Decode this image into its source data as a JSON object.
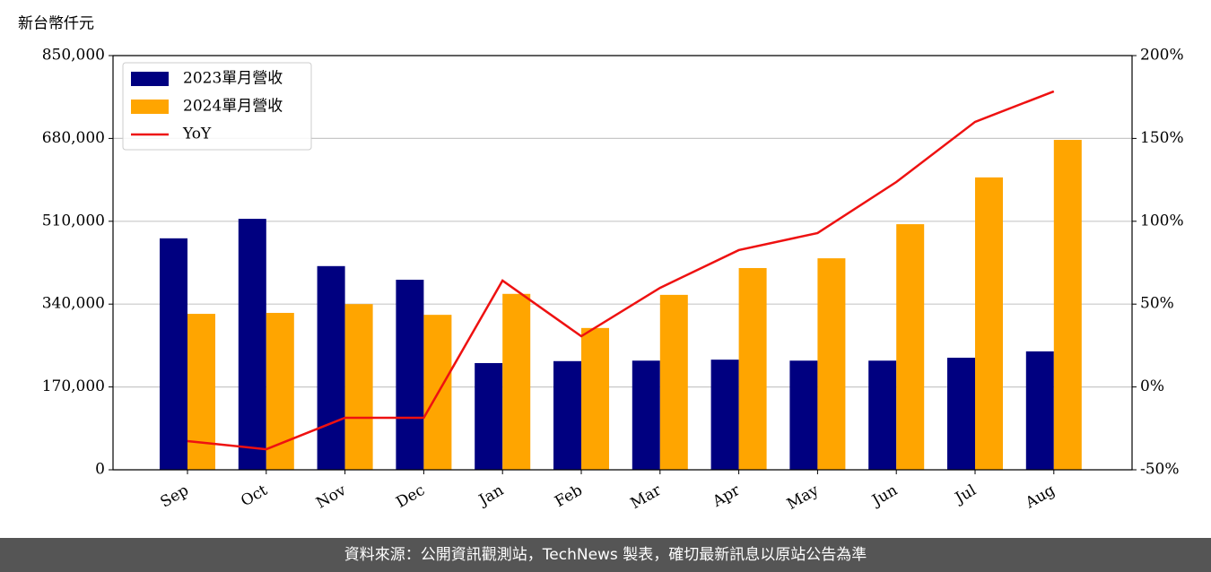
{
  "chart_data": {
    "type": "bar",
    "y_axis_label": "新台幣仟元",
    "categories": [
      "Sep",
      "Oct",
      "Nov",
      "Dec",
      "Jan",
      "Feb",
      "Mar",
      "Apr",
      "May",
      "Jun",
      "Jul",
      "Aug"
    ],
    "series": [
      {
        "name": "2023單月營收",
        "color": "#000080",
        "values": [
          475000,
          515000,
          418000,
          390000,
          219000,
          223000,
          224000,
          226000,
          224000,
          224000,
          230000,
          243000
        ]
      },
      {
        "name": "2024單月營收",
        "color": "#ffa500",
        "values": [
          320000,
          322000,
          340000,
          318000,
          361000,
          291000,
          359000,
          414000,
          434000,
          504000,
          600000,
          677000
        ]
      },
      {
        "name": "YoY",
        "color": "#ee1111",
        "type": "line",
        "axis": "y2",
        "values": [
          -32.7,
          -37.6,
          -18.6,
          -18.6,
          64.2,
          30.6,
          59.8,
          82.6,
          92.9,
          123.7,
          160,
          178.4
        ]
      }
    ],
    "ylim": [
      0,
      850000
    ],
    "yticks": [
      0,
      {
        "value": 170000,
        "label": "170,000"
      },
      {
        "value": 340000,
        "label": "340,000"
      },
      {
        "value": 510000,
        "label": "510,000"
      },
      {
        "value": 680000,
        "label": "680,000"
      },
      {
        "value": 850000,
        "label": "850,000"
      }
    ],
    "y2lim": [
      -50,
      200
    ],
    "y2ticks": [
      {
        "value": -50,
        "label": "-50%"
      },
      {
        "value": 0,
        "label": "0%"
      },
      {
        "value": 50,
        "label": "50%"
      },
      {
        "value": 100,
        "label": "100%"
      },
      {
        "value": 150,
        "label": "150%"
      },
      {
        "value": 200,
        "label": "200%"
      }
    ],
    "grid": true,
    "legend": "upper left"
  },
  "footer": "資料來源：公開資訊觀測站，TechNews 製表，確切最新訊息以原站公告為準"
}
